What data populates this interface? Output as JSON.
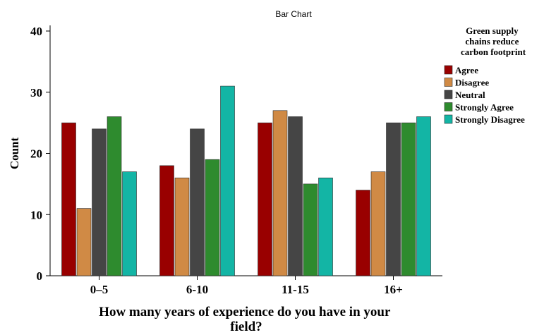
{
  "chart_data": {
    "type": "bar",
    "title": "Bar Chart",
    "xlabel": "How many years of experience do you have in your field?",
    "xlabel_lines": [
      "How many years of experience do you have in your",
      "field?"
    ],
    "ylabel": "Count",
    "ylim": [
      0,
      40
    ],
    "yticks": [
      0,
      10,
      20,
      30,
      40
    ],
    "categories": [
      "0–5",
      "6-10",
      "11-15",
      "16+"
    ],
    "legend_title": "Green supply chains reduce carbon footprint",
    "legend_title_lines": [
      "Green supply",
      "chains reduce",
      "carbon footprint"
    ],
    "legend_position": "right",
    "grid": false,
    "series": [
      {
        "name": "Agree",
        "color": "#990000",
        "values": [
          25,
          18,
          25,
          14
        ]
      },
      {
        "name": "Disagree",
        "color": "#D08A45",
        "values": [
          11,
          16,
          27,
          17
        ]
      },
      {
        "name": "Neutral",
        "color": "#454545",
        "values": [
          24,
          24,
          26,
          25
        ]
      },
      {
        "name": "Strongly Agree",
        "color": "#2E8B2E",
        "values": [
          26,
          19,
          15,
          25
        ]
      },
      {
        "name": "Strongly Disagree",
        "color": "#13B5A5",
        "values": [
          17,
          31,
          16,
          26
        ]
      }
    ]
  }
}
